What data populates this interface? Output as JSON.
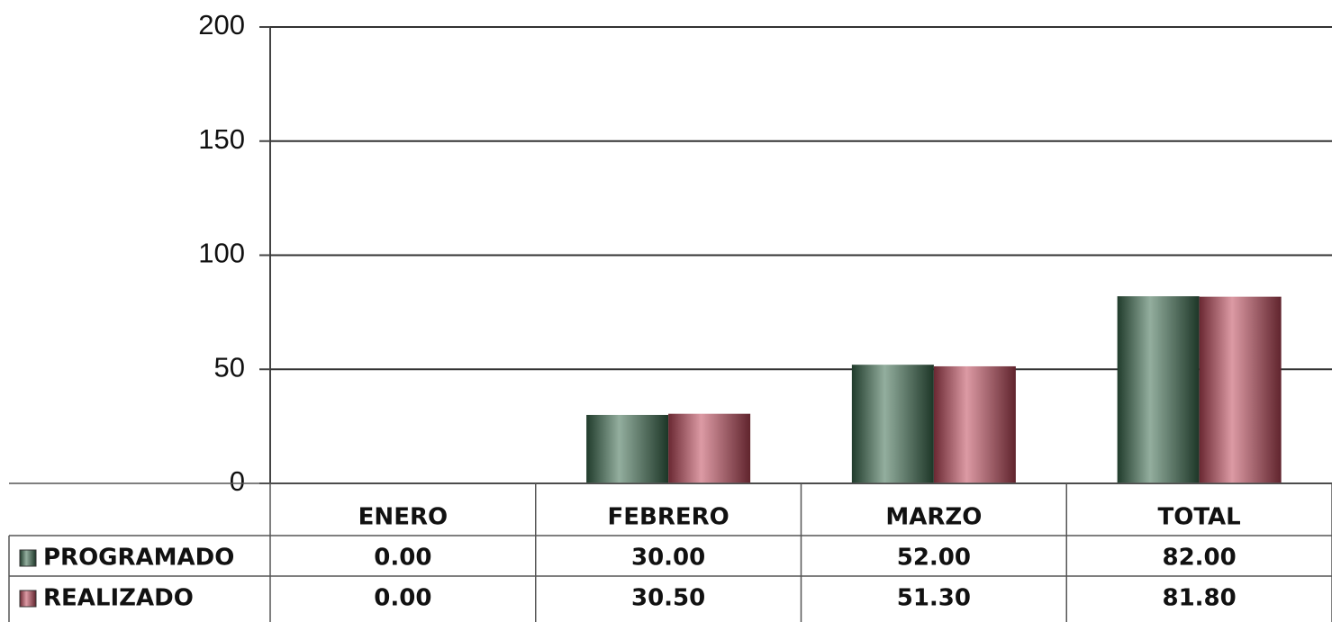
{
  "chart_data": {
    "type": "bar",
    "categories": [
      "ENERO",
      "FEBRERO",
      "MARZO",
      "TOTAL"
    ],
    "series": [
      {
        "name": "PROGRAMADO",
        "color": "#3a6b4e",
        "values": [
          0,
          30,
          52,
          82
        ],
        "value_labels": [
          "0.00",
          "30.00",
          "52.00",
          "82.00"
        ]
      },
      {
        "name": "REALIZADO",
        "color": "#c0485a",
        "values": [
          0,
          30.5,
          51.3,
          81.8
        ],
        "value_labels": [
          "0.00",
          "30.50",
          "51.30",
          "81.80"
        ]
      }
    ],
    "ylim": [
      0,
      200
    ],
    "yticks": [
      0,
      50,
      100,
      150,
      200
    ],
    "grid": true
  }
}
